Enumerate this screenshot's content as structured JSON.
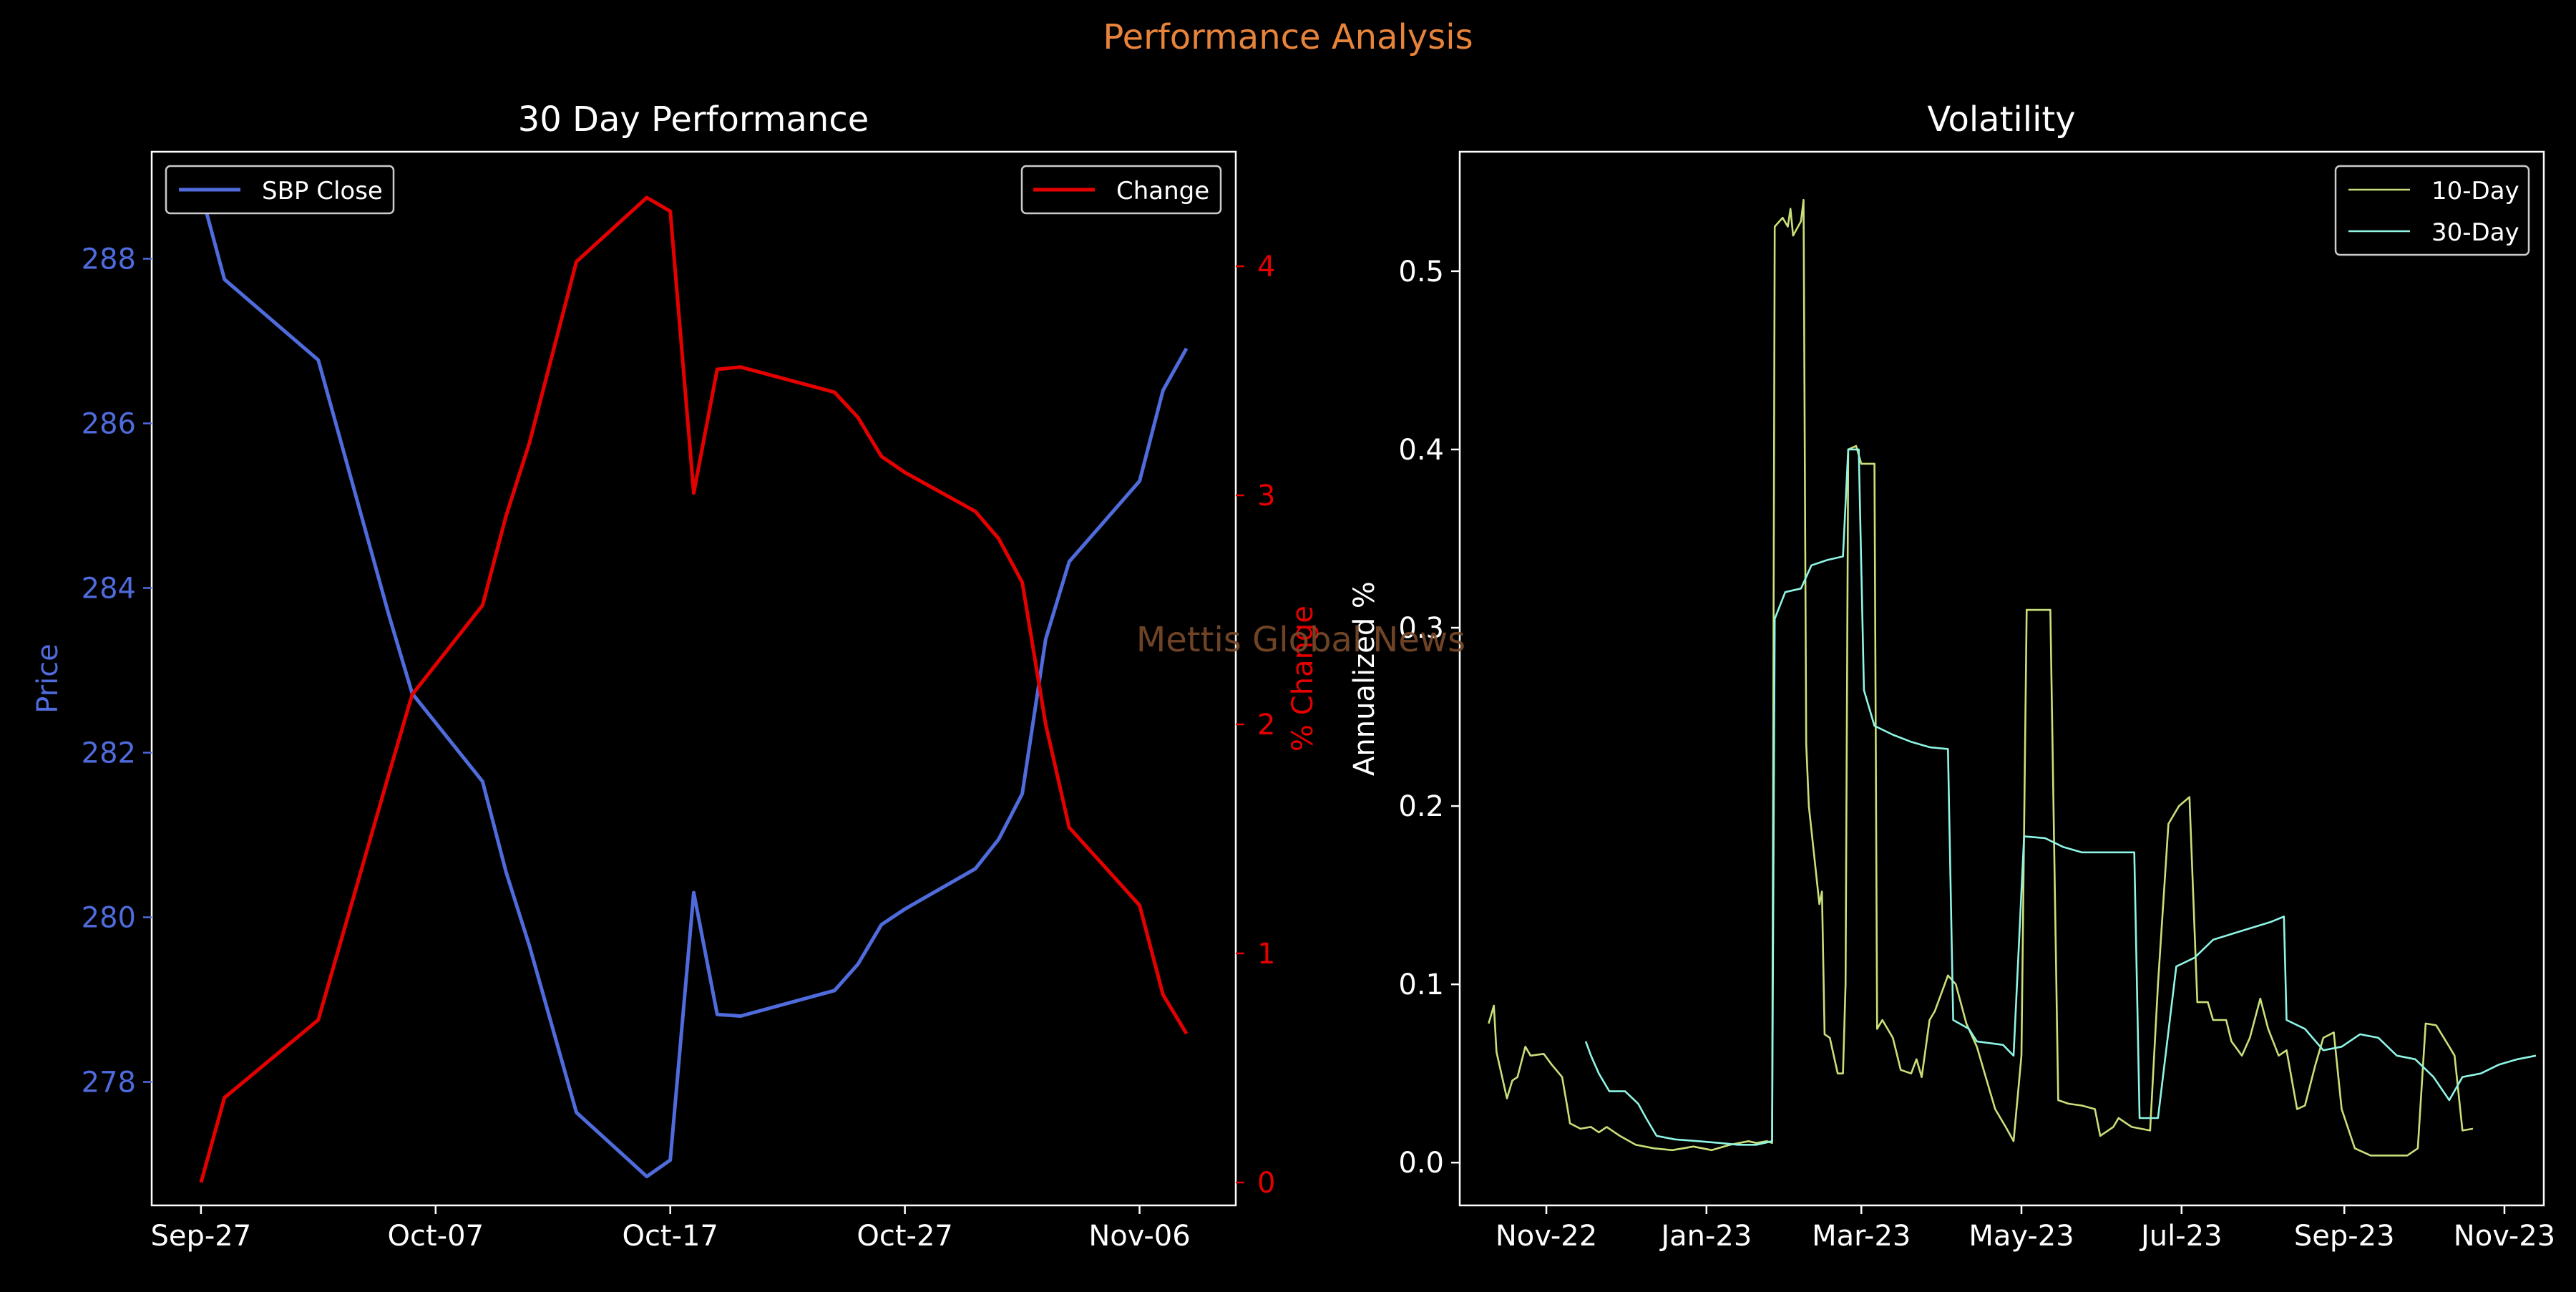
{
  "figure": {
    "suptitle": "Performance Analysis",
    "watermark": "Mettis Global News",
    "colors": {
      "background": "#000000",
      "suptitle": "#e8833a",
      "watermark": "#7a4a2a",
      "price": "#4f6bdc",
      "change": "#e50000",
      "vol10": "#c9e07a",
      "vol30": "#8ff5e6",
      "axes": "#ffffff"
    }
  },
  "chart_data": [
    {
      "type": "line",
      "title": "30 Day Performance",
      "ylabel": "Price",
      "y2label": "% Change",
      "x_ticks": [
        {
          "date": "2023-09-27",
          "label": "Sep-27"
        },
        {
          "date": "2023-10-07",
          "label": "Oct-07"
        },
        {
          "date": "2023-10-17",
          "label": "Oct-17"
        },
        {
          "date": "2023-10-27",
          "label": "Oct-27"
        },
        {
          "date": "2023-11-06",
          "label": "Nov-06"
        }
      ],
      "xlim": [
        "2023-09-27",
        "2023-11-08"
      ],
      "ylim": [
        276.5,
        289.3
      ],
      "y_ticks": [
        278,
        280,
        282,
        284,
        286,
        288
      ],
      "y2lim": [
        -0.1,
        4.5
      ],
      "y2_ticks": [
        0,
        1,
        2,
        3,
        4
      ],
      "legend_left": {
        "label": "SBP Close",
        "placement": "top-left"
      },
      "legend_right": {
        "label": "Change",
        "placement": "top-right"
      },
      "x": [
        "2023-09-27",
        "2023-09-28",
        "2023-10-02",
        "2023-10-05",
        "2023-10-06",
        "2023-10-09",
        "2023-10-10",
        "2023-10-11",
        "2023-10-13",
        "2023-10-16",
        "2023-10-17",
        "2023-10-18",
        "2023-10-19",
        "2023-10-20",
        "2023-10-24",
        "2023-10-25",
        "2023-10-26",
        "2023-10-27",
        "2023-10-30",
        "2023-10-31",
        "2023-11-01",
        "2023-11-02",
        "2023-11-03",
        "2023-11-06",
        "2023-11-07",
        "2023-11-08"
      ],
      "series": [
        {
          "name": "SBP Close",
          "axis": "left",
          "values": [
            288.81,
            287.75,
            286.77,
            283.68,
            282.72,
            281.65,
            280.55,
            279.65,
            277.63,
            276.85,
            277.05,
            280.3,
            278.82,
            278.8,
            279.11,
            279.43,
            279.91,
            280.1,
            280.59,
            280.95,
            281.5,
            283.38,
            284.32,
            285.3,
            286.4,
            286.91
          ]
        },
        {
          "name": "Change",
          "axis": "right",
          "values": [
            0.0,
            0.37,
            0.71,
            1.78,
            2.13,
            2.52,
            2.91,
            3.23,
            4.02,
            4.3,
            4.24,
            3.01,
            3.55,
            3.56,
            3.45,
            3.34,
            3.17,
            3.1,
            2.93,
            2.81,
            2.62,
            2.0,
            1.55,
            1.21,
            0.82,
            0.65
          ]
        }
      ]
    },
    {
      "type": "line",
      "title": "Volatility",
      "ylabel": "Annualized %",
      "x_ticks": [
        {
          "date": "2022-11-01",
          "label": "Nov-22"
        },
        {
          "date": "2023-01-01",
          "label": "Jan-23"
        },
        {
          "date": "2023-03-01",
          "label": "Mar-23"
        },
        {
          "date": "2023-05-01",
          "label": "May-23"
        },
        {
          "date": "2023-07-01",
          "label": "Jul-23"
        },
        {
          "date": "2023-09-01",
          "label": "Sep-23"
        },
        {
          "date": "2023-11-01",
          "label": "Nov-23"
        }
      ],
      "xlim": [
        "2022-09-29",
        "2023-11-16"
      ],
      "ylim": [
        -0.024,
        0.567
      ],
      "y_ticks": [
        0.0,
        0.1,
        0.2,
        0.3,
        0.4,
        0.5
      ],
      "y_tick_labels": [
        "0.0",
        "0.1",
        "0.2",
        "0.3",
        "0.4",
        "0.5"
      ],
      "legend": {
        "placement": "top-right"
      },
      "series": [
        {
          "name": "10-Day",
          "points": [
            [
              "2022-10-10",
              0.078
            ],
            [
              "2022-10-12",
              0.088
            ],
            [
              "2022-10-13",
              0.062
            ],
            [
              "2022-10-17",
              0.036
            ],
            [
              "2022-10-19",
              0.046
            ],
            [
              "2022-10-21",
              0.048
            ],
            [
              "2022-10-24",
              0.065
            ],
            [
              "2022-10-26",
              0.06
            ],
            [
              "2022-10-31",
              0.061
            ],
            [
              "2022-11-03",
              0.055
            ],
            [
              "2022-11-07",
              0.048
            ],
            [
              "2022-11-09",
              0.031
            ],
            [
              "2022-11-10",
              0.022
            ],
            [
              "2022-11-14",
              0.019
            ],
            [
              "2022-11-18",
              0.02
            ],
            [
              "2022-11-21",
              0.017
            ],
            [
              "2022-11-24",
              0.02
            ],
            [
              "2022-11-29",
              0.015
            ],
            [
              "2022-12-05",
              0.01
            ],
            [
              "2022-12-12",
              0.008
            ],
            [
              "2022-12-19",
              0.007
            ],
            [
              "2022-12-27",
              0.009
            ],
            [
              "2023-01-03",
              0.007
            ],
            [
              "2023-01-10",
              0.01
            ],
            [
              "2023-01-17",
              0.012
            ],
            [
              "2023-01-20",
              0.011
            ],
            [
              "2023-01-24",
              0.012
            ],
            [
              "2023-01-26",
              0.011
            ],
            [
              "2023-01-27",
              0.525
            ],
            [
              "2023-01-30",
              0.53
            ],
            [
              "2023-02-01",
              0.525
            ],
            [
              "2023-02-02",
              0.535
            ],
            [
              "2023-02-03",
              0.52
            ],
            [
              "2023-02-06",
              0.528
            ],
            [
              "2023-02-07",
              0.54
            ],
            [
              "2023-02-08",
              0.235
            ],
            [
              "2023-02-09",
              0.2
            ],
            [
              "2023-02-13",
              0.145
            ],
            [
              "2023-02-14",
              0.152
            ],
            [
              "2023-02-15",
              0.072
            ],
            [
              "2023-02-17",
              0.07
            ],
            [
              "2023-02-20",
              0.05
            ],
            [
              "2023-02-22",
              0.05
            ],
            [
              "2023-02-23",
              0.1
            ],
            [
              "2023-02-24",
              0.4
            ],
            [
              "2023-02-27",
              0.402
            ],
            [
              "2023-03-01",
              0.392
            ],
            [
              "2023-03-06",
              0.392
            ],
            [
              "2023-03-07",
              0.075
            ],
            [
              "2023-03-09",
              0.08
            ],
            [
              "2023-03-13",
              0.07
            ],
            [
              "2023-03-16",
              0.052
            ],
            [
              "2023-03-20",
              0.05
            ],
            [
              "2023-03-22",
              0.058
            ],
            [
              "2023-03-24",
              0.048
            ],
            [
              "2023-03-27",
              0.08
            ],
            [
              "2023-03-29",
              0.085
            ],
            [
              "2023-04-03",
              0.105
            ],
            [
              "2023-04-06",
              0.1
            ],
            [
              "2023-04-10",
              0.078
            ],
            [
              "2023-04-14",
              0.065
            ],
            [
              "2023-04-18",
              0.045
            ],
            [
              "2023-04-21",
              0.03
            ],
            [
              "2023-04-25",
              0.02
            ],
            [
              "2023-04-28",
              0.012
            ],
            [
              "2023-05-01",
              0.06
            ],
            [
              "2023-05-03",
              0.31
            ],
            [
              "2023-05-12",
              0.31
            ],
            [
              "2023-05-15",
              0.035
            ],
            [
              "2023-05-19",
              0.033
            ],
            [
              "2023-05-24",
              0.032
            ],
            [
              "2023-05-29",
              0.03
            ],
            [
              "2023-05-31",
              0.015
            ],
            [
              "2023-06-05",
              0.02
            ],
            [
              "2023-06-07",
              0.025
            ],
            [
              "2023-06-12",
              0.02
            ],
            [
              "2023-06-19",
              0.018
            ],
            [
              "2023-06-22",
              0.1
            ],
            [
              "2023-06-26",
              0.19
            ],
            [
              "2023-06-30",
              0.2
            ],
            [
              "2023-07-04",
              0.205
            ],
            [
              "2023-07-07",
              0.09
            ],
            [
              "2023-07-11",
              0.09
            ],
            [
              "2023-07-13",
              0.08
            ],
            [
              "2023-07-18",
              0.08
            ],
            [
              "2023-07-20",
              0.068
            ],
            [
              "2023-07-24",
              0.06
            ],
            [
              "2023-07-27",
              0.07
            ],
            [
              "2023-07-31",
              0.092
            ],
            [
              "2023-08-03",
              0.075
            ],
            [
              "2023-08-07",
              0.06
            ],
            [
              "2023-08-10",
              0.063
            ],
            [
              "2023-08-14",
              0.03
            ],
            [
              "2023-08-17",
              0.032
            ],
            [
              "2023-08-21",
              0.055
            ],
            [
              "2023-08-24",
              0.07
            ],
            [
              "2023-08-28",
              0.073
            ],
            [
              "2023-08-31",
              0.03
            ],
            [
              "2023-09-05",
              0.008
            ],
            [
              "2023-09-11",
              0.004
            ],
            [
              "2023-09-18",
              0.004
            ],
            [
              "2023-09-25",
              0.004
            ],
            [
              "2023-09-29",
              0.008
            ],
            [
              "2023-10-02",
              0.078
            ],
            [
              "2023-10-06",
              0.077
            ],
            [
              "2023-10-11",
              0.065
            ],
            [
              "2023-10-13",
              0.06
            ],
            [
              "2023-10-16",
              0.018
            ],
            [
              "2023-10-20",
              0.019
            ]
          ]
        },
        {
          "name": "30-Day",
          "points": [
            [
              "2022-11-16",
              0.068
            ],
            [
              "2022-11-18",
              0.06
            ],
            [
              "2022-11-21",
              0.05
            ],
            [
              "2022-11-25",
              0.04
            ],
            [
              "2022-12-01",
              0.04
            ],
            [
              "2022-12-06",
              0.033
            ],
            [
              "2022-12-09",
              0.025
            ],
            [
              "2022-12-13",
              0.015
            ],
            [
              "2022-12-20",
              0.013
            ],
            [
              "2022-12-29",
              0.012
            ],
            [
              "2023-01-06",
              0.011
            ],
            [
              "2023-01-13",
              0.01
            ],
            [
              "2023-01-20",
              0.01
            ],
            [
              "2023-01-26",
              0.012
            ],
            [
              "2023-01-27",
              0.305
            ],
            [
              "2023-01-31",
              0.32
            ],
            [
              "2023-02-06",
              0.322
            ],
            [
              "2023-02-10",
              0.335
            ],
            [
              "2023-02-16",
              0.338
            ],
            [
              "2023-02-22",
              0.34
            ],
            [
              "2023-02-24",
              0.4
            ],
            [
              "2023-02-28",
              0.4
            ],
            [
              "2023-03-02",
              0.265
            ],
            [
              "2023-03-06",
              0.245
            ],
            [
              "2023-03-13",
              0.24
            ],
            [
              "2023-03-20",
              0.236
            ],
            [
              "2023-03-27",
              0.233
            ],
            [
              "2023-04-03",
              0.232
            ],
            [
              "2023-04-05",
              0.08
            ],
            [
              "2023-04-11",
              0.075
            ],
            [
              "2023-04-14",
              0.068
            ],
            [
              "2023-04-24",
              0.066
            ],
            [
              "2023-04-28",
              0.06
            ],
            [
              "2023-05-02",
              0.183
            ],
            [
              "2023-05-10",
              0.182
            ],
            [
              "2023-05-17",
              0.177
            ],
            [
              "2023-05-24",
              0.174
            ],
            [
              "2023-06-05",
              0.174
            ],
            [
              "2023-06-13",
              0.174
            ],
            [
              "2023-06-15",
              0.025
            ],
            [
              "2023-06-22",
              0.025
            ],
            [
              "2023-06-29",
              0.11
            ],
            [
              "2023-07-06",
              0.115
            ],
            [
              "2023-07-13",
              0.125
            ],
            [
              "2023-07-24",
              0.13
            ],
            [
              "2023-08-04",
              0.135
            ],
            [
              "2023-08-09",
              0.138
            ],
            [
              "2023-08-10",
              0.08
            ],
            [
              "2023-08-17",
              0.075
            ],
            [
              "2023-08-24",
              0.063
            ],
            [
              "2023-08-31",
              0.065
            ],
            [
              "2023-09-07",
              0.072
            ],
            [
              "2023-09-14",
              0.07
            ],
            [
              "2023-09-21",
              0.06
            ],
            [
              "2023-09-28",
              0.058
            ],
            [
              "2023-10-05",
              0.048
            ],
            [
              "2023-10-11",
              0.035
            ],
            [
              "2023-10-16",
              0.048
            ],
            [
              "2023-10-23",
              0.05
            ],
            [
              "2023-10-30",
              0.055
            ],
            [
              "2023-11-06",
              0.058
            ],
            [
              "2023-11-13",
              0.06
            ]
          ]
        }
      ]
    }
  ]
}
